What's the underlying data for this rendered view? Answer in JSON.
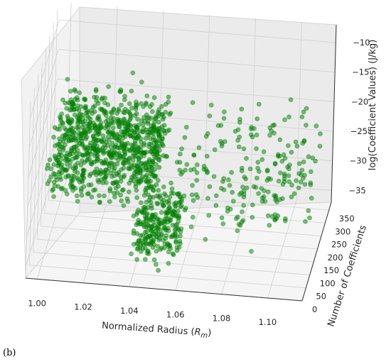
{
  "panel_tag": "(b)",
  "chart_data": {
    "type": "scatter",
    "projection": "3d",
    "title": "",
    "xlabel": "Normalized Radius (R_m)",
    "ylabel": "Number of Coefficients",
    "zlabel": "log(Coefficient Values) (J/kg)",
    "xlim": [
      0.995,
      1.115
    ],
    "ylim": [
      0,
      380
    ],
    "zlim": [
      -37,
      -7
    ],
    "xticks": [
      "1.00",
      "1.02",
      "1.04",
      "1.06",
      "1.08",
      "1.10"
    ],
    "yticks": [
      "0",
      "50",
      "100",
      "150",
      "200",
      "250",
      "300",
      "350"
    ],
    "zticks": [
      "−35",
      "−30",
      "−25",
      "−20",
      "−15",
      "−10"
    ],
    "grid": true,
    "legend": "none",
    "marker_color": "#008000",
    "series": [
      {
        "values": "many points; clusters summarized below",
        "clusters": [
          {
            "x_range": [
              1.0,
              1.045
            ],
            "y_range": [
              100,
              380
            ],
            "z_range": [
              -31,
              -14
            ],
            "note": "dense block"
          },
          {
            "x_range": [
              1.04,
              1.06
            ],
            "y_range": [
              0,
              150
            ],
            "z_range": [
              -36,
              -22
            ],
            "note": "low-count tail"
          },
          {
            "x_range": [
              1.055,
              1.11
            ],
            "y_range": [
              100,
              380
            ],
            "z_range": [
              -36,
              -20
            ],
            "note": "sparse grid"
          }
        ]
      }
    ]
  }
}
